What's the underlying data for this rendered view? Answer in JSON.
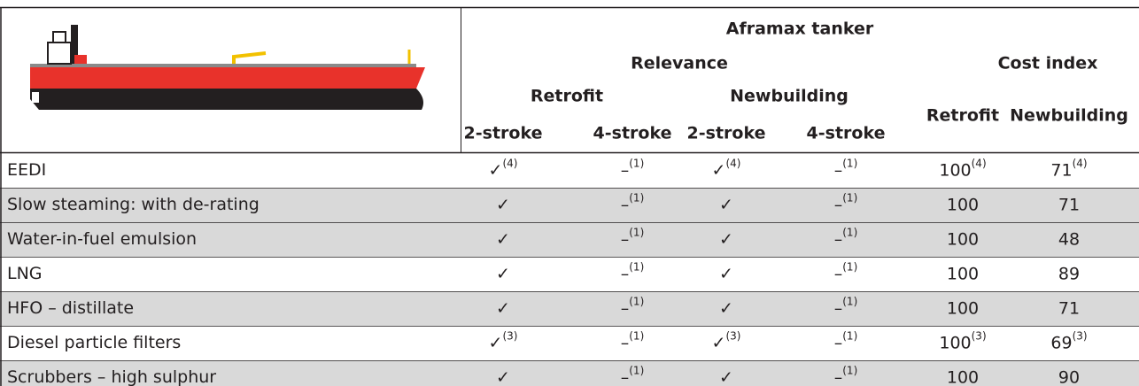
{
  "header": {
    "group": "Aframax tanker",
    "relevance": "Relevance",
    "cost_index": "Cost index",
    "subgroups": [
      "Retrofit",
      "Newbuilding"
    ],
    "columns": [
      "2-stroke",
      "4-stroke",
      "2-stroke",
      "4-stroke",
      "Retrofit",
      "Newbuilding"
    ]
  },
  "table": {
    "rows": [
      {
        "label": "EEDI",
        "cells": [
          {
            "text": "✓",
            "note": "(4)"
          },
          {
            "text": "–",
            "note": "(1)"
          },
          {
            "text": "✓",
            "note": "(4)"
          },
          {
            "text": "–",
            "note": "(1)"
          },
          {
            "text": "100",
            "note": "(4)"
          },
          {
            "text": "71",
            "note": "(4)"
          }
        ]
      },
      {
        "label": "Slow steaming: with de-rating",
        "cells": [
          {
            "text": "✓"
          },
          {
            "text": "–",
            "note": "(1)"
          },
          {
            "text": "✓"
          },
          {
            "text": "–",
            "note": "(1)"
          },
          {
            "text": "100"
          },
          {
            "text": "71"
          }
        ]
      },
      {
        "label": "Water-in-fuel emulsion",
        "cells": [
          {
            "text": "✓"
          },
          {
            "text": "–",
            "note": "(1)"
          },
          {
            "text": "✓"
          },
          {
            "text": "–",
            "note": "(1)"
          },
          {
            "text": "100"
          },
          {
            "text": "48"
          }
        ]
      },
      {
        "label": "LNG",
        "cells": [
          {
            "text": "✓"
          },
          {
            "text": "–",
            "note": "(1)"
          },
          {
            "text": "✓"
          },
          {
            "text": "–",
            "note": "(1)"
          },
          {
            "text": "100"
          },
          {
            "text": "89"
          }
        ]
      },
      {
        "label": "HFO – distillate",
        "cells": [
          {
            "text": "✓"
          },
          {
            "text": "–",
            "note": "(1)"
          },
          {
            "text": "✓"
          },
          {
            "text": "–",
            "note": "(1)"
          },
          {
            "text": "100"
          },
          {
            "text": "71"
          }
        ]
      },
      {
        "label": "Diesel particle filters",
        "cells": [
          {
            "text": "✓",
            "note": "(3)"
          },
          {
            "text": "–",
            "note": "(1)"
          },
          {
            "text": "✓",
            "note": "(3)"
          },
          {
            "text": "–",
            "note": "(1)"
          },
          {
            "text": "100",
            "note": "(3)"
          },
          {
            "text": "69",
            "note": "(3)"
          }
        ]
      },
      {
        "label": "Scrubbers – high sulphur",
        "cells": [
          {
            "text": "✓"
          },
          {
            "text": "–",
            "note": "(1)"
          },
          {
            "text": "✓"
          },
          {
            "text": "–",
            "note": "(1)"
          },
          {
            "text": "100"
          },
          {
            "text": "90"
          }
        ]
      }
    ]
  }
}
